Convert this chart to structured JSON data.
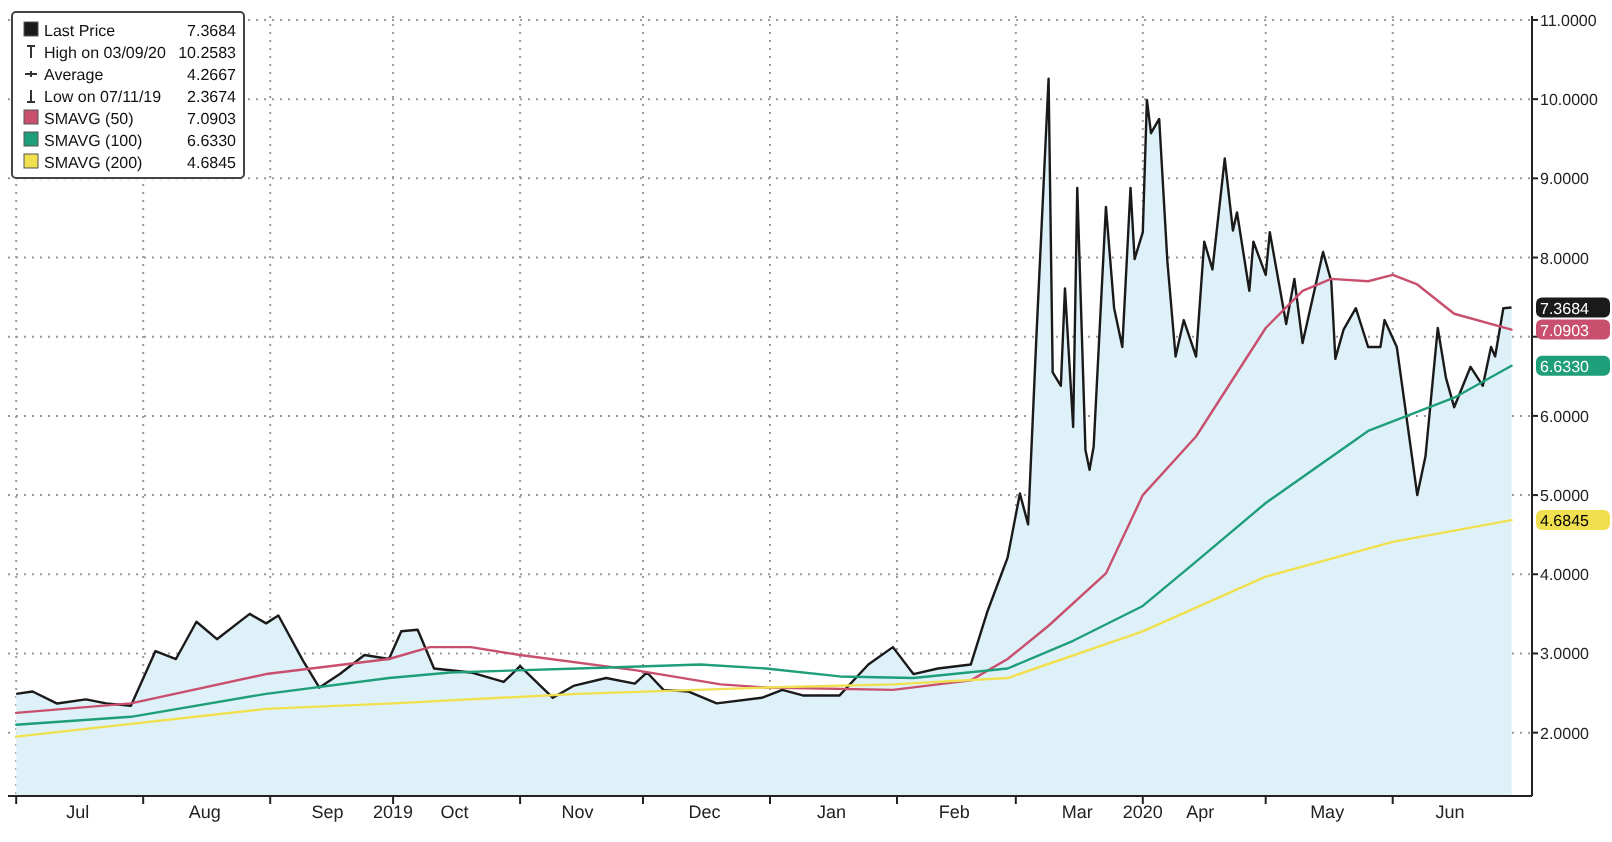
{
  "chart_data": {
    "type": "line",
    "legend": "top left",
    "grid": true,
    "xlim": [
      "2019-06-29",
      "2020-07-05"
    ],
    "xticks": [
      {
        "value": "2019-07-01",
        "label": null
      },
      {
        "value": "2019-07-16",
        "label": "Jul"
      },
      {
        "value": "2019-08-01",
        "label": null
      },
      {
        "value": "2019-08-16",
        "label": "Aug"
      },
      {
        "value": "2019-09-01",
        "label": null
      },
      {
        "value": "2019-09-15",
        "label": "Sep"
      },
      {
        "value": "2019-10-01",
        "label": "2019"
      },
      {
        "value": "2019-10-16",
        "label": "Oct"
      },
      {
        "value": "2019-11-01",
        "label": null
      },
      {
        "value": "2019-11-15",
        "label": "Nov"
      },
      {
        "value": "2019-12-01",
        "label": null
      },
      {
        "value": "2019-12-16",
        "label": "Dec"
      },
      {
        "value": "2020-01-01",
        "label": null
      },
      {
        "value": "2020-01-16",
        "label": "Jan"
      },
      {
        "value": "2020-02-01",
        "label": null
      },
      {
        "value": "2020-02-15",
        "label": "Feb"
      },
      {
        "value": "2020-03-01",
        "label": null
      },
      {
        "value": "2020-03-16",
        "label": "Mar"
      },
      {
        "value": "2020-04-01",
        "label": "2020"
      },
      {
        "value": "2020-04-15",
        "label": "Apr"
      },
      {
        "value": "2020-05-01",
        "label": null
      },
      {
        "value": "2020-05-16",
        "label": "May"
      },
      {
        "value": "2020-06-01",
        "label": null
      },
      {
        "value": "2020-06-15",
        "label": "Jun"
      }
    ],
    "ylim": [
      1.2,
      11.05
    ],
    "yticks": [
      {
        "value": 2,
        "label": "2.0000"
      },
      {
        "value": 3,
        "label": "3.0000"
      },
      {
        "value": 4,
        "label": "4.0000"
      },
      {
        "value": 5,
        "label": "5.0000"
      },
      {
        "value": 6,
        "label": "6.0000"
      },
      {
        "value": 7,
        "label": null
      },
      {
        "value": 8,
        "label": "8.0000"
      },
      {
        "value": 9,
        "label": "9.0000"
      },
      {
        "value": 10,
        "label": "10.0000"
      },
      {
        "value": 11,
        "label": "11.0000"
      }
    ],
    "annotations": [
      "High on 03/09/20 10.2583",
      "Average 4.2667",
      "Low on 07/11/19 2.3674"
    ],
    "series": [
      {
        "name": "Last Price",
        "type": "area",
        "color": "#1a1a1a",
        "x": [
          "2019-07-01",
          "2019-07-05",
          "2019-07-11",
          "2019-07-18",
          "2019-07-23",
          "2019-07-29",
          "2019-08-04",
          "2019-08-09",
          "2019-08-14",
          "2019-08-19",
          "2019-08-27",
          "2019-08-31",
          "2019-09-03",
          "2019-09-09",
          "2019-09-13",
          "2019-09-18",
          "2019-09-24",
          "2019-09-30",
          "2019-10-03",
          "2019-10-07",
          "2019-10-11",
          "2019-10-20",
          "2019-10-28",
          "2019-11-01",
          "2019-11-09",
          "2019-11-14",
          "2019-11-22",
          "2019-11-29",
          "2019-12-02",
          "2019-12-06",
          "2019-12-12",
          "2019-12-19",
          "2019-12-30",
          "2020-01-04",
          "2020-01-09",
          "2020-01-18",
          "2020-01-25",
          "2020-01-31",
          "2020-02-05",
          "2020-02-11",
          "2020-02-19",
          "2020-02-23",
          "2020-02-28",
          "2020-03-02",
          "2020-03-04",
          "2020-03-06",
          "2020-03-09",
          "2020-03-10",
          "2020-03-12",
          "2020-03-13",
          "2020-03-15",
          "2020-03-16",
          "2020-03-18",
          "2020-03-19",
          "2020-03-20",
          "2020-03-23",
          "2020-03-25",
          "2020-03-27",
          "2020-03-29",
          "2020-03-30",
          "2020-04-01",
          "2020-04-02",
          "2020-04-03",
          "2020-04-05",
          "2020-04-07",
          "2020-04-09",
          "2020-04-11",
          "2020-04-14",
          "2020-04-16",
          "2020-04-18",
          "2020-04-21",
          "2020-04-23",
          "2020-04-24",
          "2020-04-27",
          "2020-04-28",
          "2020-05-01",
          "2020-05-02",
          "2020-05-06",
          "2020-05-08",
          "2020-05-10",
          "2020-05-15",
          "2020-05-17",
          "2020-05-18",
          "2020-05-20",
          "2020-05-23",
          "2020-05-26",
          "2020-05-29",
          "2020-05-30",
          "2020-06-02",
          "2020-06-07",
          "2020-06-09",
          "2020-06-12",
          "2020-06-14",
          "2020-06-16",
          "2020-06-20",
          "2020-06-23",
          "2020-06-25",
          "2020-06-26",
          "2020-06-28",
          "2020-06-30"
        ],
        "values": [
          2.49,
          2.52,
          2.3674,
          2.42,
          2.37,
          2.34,
          3.03,
          2.93,
          3.4,
          3.18,
          3.5,
          3.38,
          3.48,
          2.91,
          2.57,
          2.74,
          2.98,
          2.93,
          3.28,
          3.3,
          2.81,
          2.76,
          2.64,
          2.84,
          2.44,
          2.59,
          2.69,
          2.62,
          2.76,
          2.54,
          2.52,
          2.37,
          2.44,
          2.54,
          2.47,
          2.47,
          2.86,
          3.08,
          2.74,
          2.81,
          2.86,
          3.52,
          4.21,
          5.02,
          4.63,
          6.97,
          10.2583,
          6.55,
          6.38,
          7.61,
          5.86,
          8.88,
          5.57,
          5.32,
          5.61,
          8.64,
          7.36,
          6.87,
          8.88,
          7.98,
          8.32,
          9.99,
          9.57,
          9.75,
          7.95,
          6.75,
          7.21,
          6.75,
          8.2,
          7.85,
          9.25,
          8.34,
          8.57,
          7.58,
          8.2,
          7.78,
          8.32,
          7.16,
          7.73,
          6.92,
          8.07,
          7.7,
          6.72,
          7.09,
          7.36,
          6.87,
          6.87,
          7.21,
          6.87,
          5.0,
          5.49,
          7.11,
          6.48,
          6.11,
          6.62,
          6.38,
          6.87,
          6.75,
          7.36,
          7.3684
        ],
        "value_labels": [
          null,
          null,
          null,
          null,
          null,
          null,
          null,
          null,
          null,
          null,
          null,
          null,
          null,
          null,
          null,
          null,
          null,
          null,
          null,
          null,
          null,
          null,
          null,
          null,
          null,
          null,
          null,
          null,
          null,
          null,
          null,
          null,
          null,
          null,
          null,
          null,
          null,
          null,
          null,
          null,
          null,
          null,
          null,
          null,
          null,
          null,
          null,
          null,
          null,
          null,
          null,
          null,
          null,
          null,
          null,
          null,
          null,
          null,
          null,
          null,
          null,
          null,
          null,
          null,
          null,
          null,
          null,
          null,
          null,
          null,
          null,
          null,
          null,
          null,
          null,
          null,
          null,
          null,
          null,
          null,
          null,
          null,
          null,
          null,
          null,
          null,
          null,
          null,
          null,
          null,
          null,
          null,
          null,
          null,
          null,
          null,
          null,
          null,
          null,
          "7.3684"
        ]
      },
      {
        "name": "SMAVG (50)",
        "color": "#c8506e",
        "x": [
          "2019-07-01",
          "2019-07-29",
          "2019-08-31",
          "2019-09-30",
          "2019-10-10",
          "2019-10-20",
          "2019-11-01",
          "2019-11-29",
          "2019-12-20",
          "2019-12-31",
          "2020-01-31",
          "2020-02-19",
          "2020-02-28",
          "2020-03-09",
          "2020-03-23",
          "2020-04-01",
          "2020-04-14",
          "2020-05-01",
          "2020-05-10",
          "2020-05-17",
          "2020-05-26",
          "2020-06-01",
          "2020-06-07",
          "2020-06-16",
          "2020-06-30"
        ],
        "values": [
          2.25,
          2.37,
          2.74,
          2.93,
          3.08,
          3.08,
          2.98,
          2.79,
          2.61,
          2.57,
          2.54,
          2.66,
          2.93,
          3.35,
          4.01,
          5.0,
          5.74,
          7.11,
          7.58,
          7.73,
          7.7,
          7.78,
          7.66,
          7.29,
          7.0903
        ],
        "value_labels": [
          null,
          null,
          null,
          null,
          null,
          null,
          null,
          null,
          null,
          null,
          null,
          null,
          null,
          null,
          null,
          null,
          null,
          null,
          null,
          null,
          null,
          null,
          null,
          null,
          "7.0903"
        ]
      },
      {
        "name": "SMAVG (100)",
        "color": "#1f9e7a",
        "x": [
          "2019-07-01",
          "2019-07-29",
          "2019-08-31",
          "2019-09-30",
          "2019-10-15",
          "2019-11-15",
          "2019-12-15",
          "2019-12-31",
          "2020-01-18",
          "2020-02-05",
          "2020-02-28",
          "2020-03-15",
          "2020-04-01",
          "2020-04-14",
          "2020-05-01",
          "2020-05-26",
          "2020-06-16",
          "2020-06-30"
        ],
        "values": [
          2.1,
          2.2,
          2.49,
          2.69,
          2.76,
          2.81,
          2.86,
          2.81,
          2.71,
          2.69,
          2.81,
          3.16,
          3.6,
          4.16,
          4.9,
          5.81,
          6.23,
          6.633
        ],
        "value_labels": [
          null,
          null,
          null,
          null,
          null,
          null,
          null,
          null,
          null,
          null,
          null,
          null,
          null,
          null,
          null,
          null,
          null,
          "6.6330"
        ]
      },
      {
        "name": "SMAVG (200)",
        "color": "#f0e050",
        "x": [
          "2019-07-01",
          "2019-08-31",
          "2019-10-01",
          "2019-11-15",
          "2019-12-31",
          "2020-01-31",
          "2020-02-28",
          "2020-04-01",
          "2020-05-01",
          "2020-06-01",
          "2020-06-30"
        ],
        "values": [
          1.95,
          2.3,
          2.37,
          2.49,
          2.57,
          2.61,
          2.69,
          3.28,
          3.97,
          4.41,
          4.6845
        ],
        "value_labels": [
          null,
          null,
          null,
          null,
          null,
          null,
          null,
          null,
          null,
          null,
          "4.6845"
        ]
      }
    ]
  }
}
